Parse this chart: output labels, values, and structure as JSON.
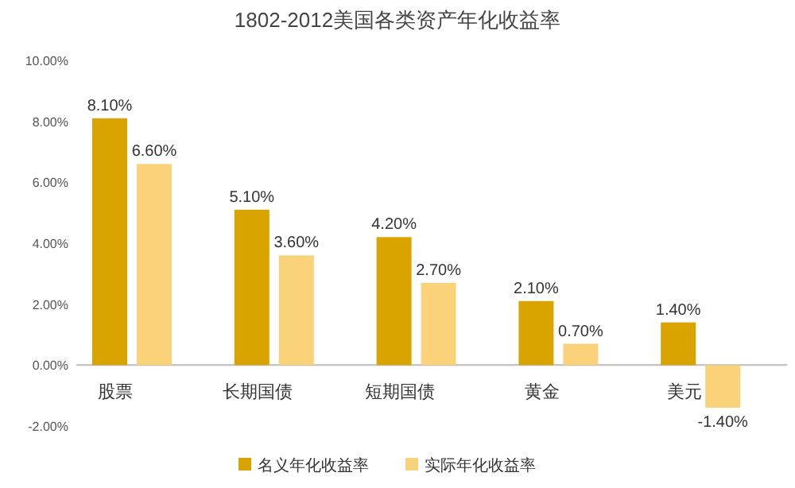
{
  "chart_data": {
    "type": "bar",
    "title": "1802-2012美国各类资产年化收益率",
    "categories": [
      "股票",
      "长期国债",
      "短期国债",
      "黄金",
      "美元"
    ],
    "series": [
      {
        "name": "名义年化收益率",
        "color": "#d9a300",
        "values": [
          8.1,
          5.1,
          4.2,
          2.1,
          1.4
        ],
        "value_labels": [
          "8.10%",
          "5.10%",
          "4.20%",
          "2.10%",
          "1.40%"
        ]
      },
      {
        "name": "实际年化收益率",
        "color": "#fad27a",
        "values": [
          6.6,
          3.6,
          2.7,
          0.7,
          -1.4
        ],
        "value_labels": [
          "6.60%",
          "3.60%",
          "2.70%",
          "0.70%",
          "-1.40%"
        ]
      }
    ],
    "ylim": [
      -2,
      10
    ],
    "yticks": [
      {
        "value": -2,
        "label": "-2.00%"
      },
      {
        "value": 0,
        "label": "0.00%"
      },
      {
        "value": 2,
        "label": "2.00%"
      },
      {
        "value": 4,
        "label": "4.00%"
      },
      {
        "value": 6,
        "label": "6.00%"
      },
      {
        "value": 8,
        "label": "8.00%"
      },
      {
        "value": 10,
        "label": "10.00%"
      }
    ],
    "grid": false,
    "legend": "bottom"
  }
}
